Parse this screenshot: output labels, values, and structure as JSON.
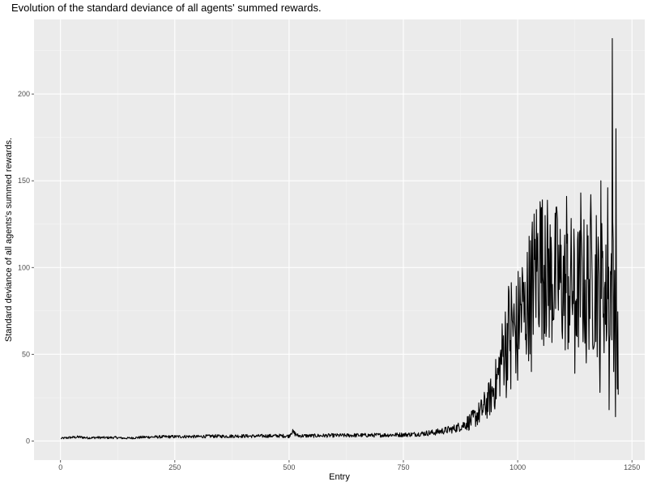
{
  "chart_data": {
    "type": "line",
    "title": "Evolution of the standard deviance of all agents' summed rewards.",
    "xlabel": "Entry",
    "ylabel": "Standard deviance of all agents's summed rewards.",
    "xlim": [
      -58,
      1278
    ],
    "ylim": [
      -11,
      243
    ],
    "x_ticks": [
      0,
      250,
      500,
      750,
      1000,
      1250
    ],
    "x_tick_labels": [
      "0",
      "250",
      "500",
      "750",
      "1000",
      "1250"
    ],
    "y_ticks": [
      0,
      50,
      100,
      150,
      200
    ],
    "y_tick_labels": [
      "0",
      "50",
      "100",
      "150",
      "200"
    ],
    "grid": true,
    "theme": "gray-panel",
    "series": [
      {
        "color": "#000000",
        "x_start": 1,
        "x_end": 1220,
        "note_values": "sampled approximate values along the line",
        "points": [
          [
            1,
            1.5
          ],
          [
            20,
            2.0
          ],
          [
            40,
            2.3
          ],
          [
            60,
            1.8
          ],
          [
            80,
            2.0
          ],
          [
            100,
            1.9
          ],
          [
            120,
            2.0
          ],
          [
            140,
            1.6
          ],
          [
            160,
            1.8
          ],
          [
            180,
            2.2
          ],
          [
            200,
            2.3
          ],
          [
            220,
            2.4
          ],
          [
            250,
            2.5
          ],
          [
            280,
            2.6
          ],
          [
            300,
            2.5
          ],
          [
            330,
            2.8
          ],
          [
            360,
            2.7
          ],
          [
            390,
            2.9
          ],
          [
            420,
            2.8
          ],
          [
            450,
            2.9
          ],
          [
            480,
            3.0
          ],
          [
            500,
            2.8
          ],
          [
            505,
            5.5
          ],
          [
            520,
            3.0
          ],
          [
            550,
            3.0
          ],
          [
            580,
            3.1
          ],
          [
            600,
            3.2
          ],
          [
            620,
            3.2
          ],
          [
            650,
            3.3
          ],
          [
            680,
            3.3
          ],
          [
            700,
            3.4
          ],
          [
            720,
            3.5
          ],
          [
            740,
            3.6
          ],
          [
            760,
            3.7
          ],
          [
            780,
            4.0
          ],
          [
            800,
            4.5
          ],
          [
            820,
            5.0
          ],
          [
            840,
            6.0
          ],
          [
            860,
            7.0
          ],
          [
            880,
            9.0
          ],
          [
            900,
            12.0
          ],
          [
            920,
            17.0
          ],
          [
            940,
            25.0
          ],
          [
            955,
            35.0
          ],
          [
            965,
            48.0
          ],
          [
            975,
            60.0
          ],
          [
            985,
            70.0
          ],
          [
            995,
            62.0
          ],
          [
            1005,
            75.0
          ],
          [
            1015,
            72.0
          ],
          [
            1025,
            85.0
          ],
          [
            1035,
            95.0
          ],
          [
            1045,
            105.0
          ],
          [
            1055,
            100.0
          ],
          [
            1065,
            98.0
          ],
          [
            1075,
            92.0
          ],
          [
            1085,
            95.0
          ],
          [
            1095,
            90.0
          ],
          [
            1105,
            88.0
          ],
          [
            1115,
            92.0
          ],
          [
            1125,
            85.0
          ],
          [
            1135,
            88.0
          ],
          [
            1145,
            90.0
          ],
          [
            1155,
            92.0
          ],
          [
            1165,
            88.0
          ],
          [
            1175,
            85.0
          ],
          [
            1185,
            90.0
          ],
          [
            1195,
            80.0
          ],
          [
            1205,
            95.0
          ],
          [
            1210,
            90.0
          ],
          [
            1215,
            85.0
          ],
          [
            1220,
            48.0
          ]
        ],
        "peaks": [
          [
            1010,
            100
          ],
          [
            1049,
            138
          ],
          [
            1060,
            130
          ],
          [
            1085,
            135
          ],
          [
            1107,
            141
          ],
          [
            1138,
            143
          ],
          [
            1160,
            142
          ],
          [
            1172,
            130
          ],
          [
            1182,
            150
          ],
          [
            1197,
            146
          ],
          [
            1207,
            232
          ],
          [
            1215,
            180
          ]
        ],
        "troughs": [
          [
            975,
            25
          ],
          [
            985,
            30
          ],
          [
            1000,
            35
          ],
          [
            1010,
            22
          ],
          [
            1030,
            40
          ],
          [
            1110,
            53
          ],
          [
            1125,
            39
          ],
          [
            1150,
            45
          ],
          [
            1180,
            28
          ],
          [
            1200,
            18
          ],
          [
            1210,
            40
          ],
          [
            1214,
            14
          ],
          [
            1218,
            30
          ]
        ]
      }
    ]
  }
}
